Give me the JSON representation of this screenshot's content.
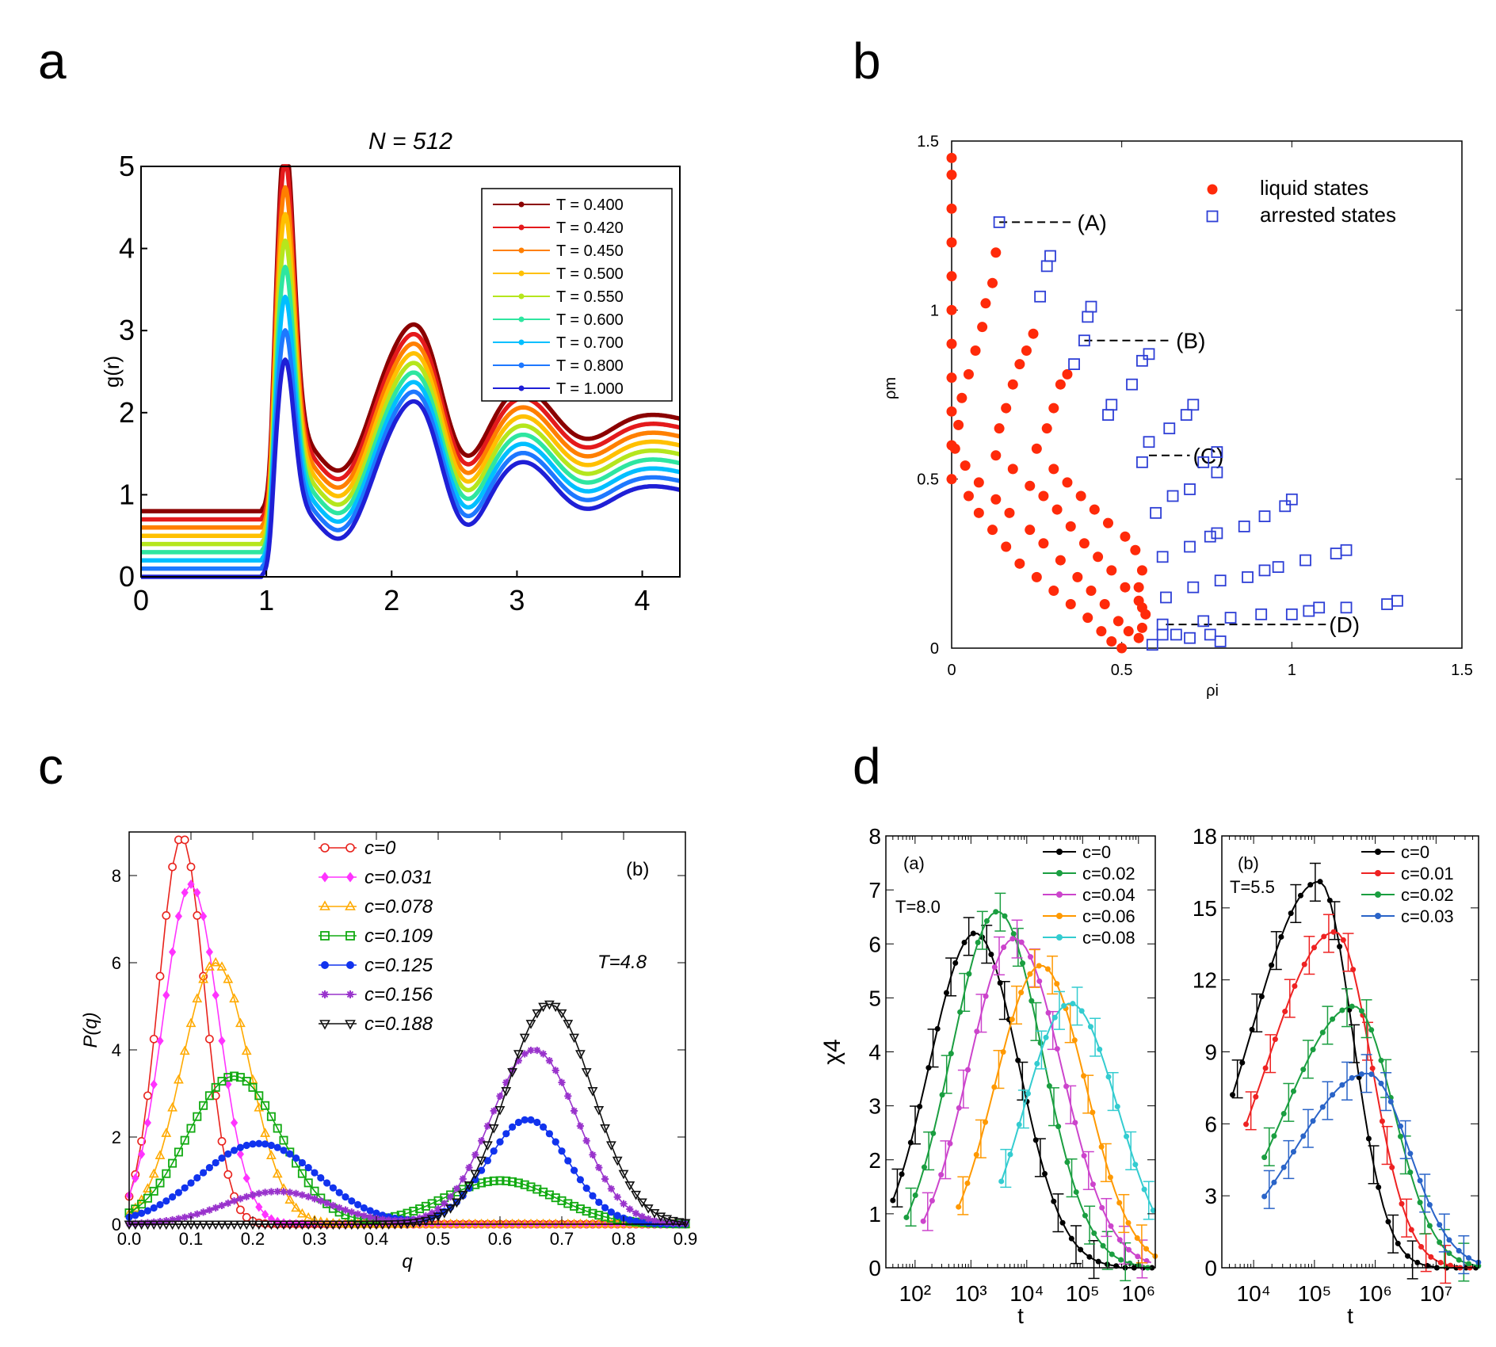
{
  "panel_labels": {
    "a": "a",
    "b": "b",
    "c": "c",
    "d": "d"
  },
  "chart_data": [
    {
      "id": "a",
      "type": "line",
      "title": "N = 512",
      "xlabel": "",
      "ylabel": "g(r)",
      "xlim": [
        0,
        4.3
      ],
      "ylim": [
        0,
        5
      ],
      "xticks": [
        0,
        1,
        2,
        3,
        4
      ],
      "yticks": [
        0,
        1,
        2,
        3,
        4,
        5
      ],
      "legend_position": "top-right",
      "series": [
        {
          "name": "T = 0.400",
          "color": "#8b0000",
          "offset": 0.8,
          "peak": 4.57
        },
        {
          "name": "T = 0.420",
          "color": "#e41a1c",
          "offset": 0.7,
          "peak": 4.45
        },
        {
          "name": "T = 0.450",
          "color": "#ff7f00",
          "offset": 0.6,
          "peak": 4.25
        },
        {
          "name": "T = 0.500",
          "color": "#ffc000",
          "offset": 0.5,
          "peak": 4.05
        },
        {
          "name": "T = 0.550",
          "color": "#b5e61d",
          "offset": 0.4,
          "peak": 3.85
        },
        {
          "name": "T = 0.600",
          "color": "#2ee6a0",
          "offset": 0.3,
          "peak": 3.65
        },
        {
          "name": "T = 0.700",
          "color": "#00bfff",
          "offset": 0.2,
          "peak": 3.4
        },
        {
          "name": "T = 0.800",
          "color": "#1e78ff",
          "offset": 0.1,
          "peak": 3.1
        },
        {
          "name": "T = 1.000",
          "color": "#1f1fd6",
          "offset": 0.0,
          "peak": 2.85
        }
      ]
    },
    {
      "id": "b",
      "type": "scatter",
      "xlabel": "ρi",
      "ylabel": "ρm",
      "xlim": [
        0,
        1.5
      ],
      "ylim": [
        0,
        1.5
      ],
      "xticks": [
        "0",
        "0.5",
        "1",
        "1.5"
      ],
      "yticks": [
        "0",
        "0.5",
        "1",
        "1.5"
      ],
      "legend_position": "top-right",
      "series": [
        {
          "name": "liquid states",
          "color": "#ff2a0a",
          "marker": "filled-circle",
          "points": [
            [
              0,
              1.45
            ],
            [
              0,
              1.4
            ],
            [
              0,
              1.3
            ],
            [
              0,
              1.2
            ],
            [
              0,
              1.1
            ],
            [
              0,
              1.0
            ],
            [
              0,
              0.9
            ],
            [
              0,
              0.8
            ],
            [
              0,
              0.7
            ],
            [
              0,
              0.6
            ],
            [
              0,
              0.5
            ],
            [
              0.05,
              0.45
            ],
            [
              0.08,
              0.4
            ],
            [
              0.12,
              0.35
            ],
            [
              0.16,
              0.3
            ],
            [
              0.2,
              0.25
            ],
            [
              0.25,
              0.21
            ],
            [
              0.3,
              0.17
            ],
            [
              0.35,
              0.13
            ],
            [
              0.4,
              0.09
            ],
            [
              0.44,
              0.05
            ],
            [
              0.47,
              0.02
            ],
            [
              0.5,
              0.0
            ],
            [
              0.13,
              1.17
            ],
            [
              0.12,
              1.08
            ],
            [
              0.1,
              1.02
            ],
            [
              0.09,
              0.95
            ],
            [
              0.07,
              0.88
            ],
            [
              0.05,
              0.81
            ],
            [
              0.03,
              0.74
            ],
            [
              0.02,
              0.66
            ],
            [
              0.01,
              0.59
            ],
            [
              0.04,
              0.54
            ],
            [
              0.08,
              0.49
            ],
            [
              0.13,
              0.44
            ],
            [
              0.17,
              0.4
            ],
            [
              0.23,
              0.35
            ],
            [
              0.27,
              0.31
            ],
            [
              0.32,
              0.26
            ],
            [
              0.37,
              0.21
            ],
            [
              0.41,
              0.17
            ],
            [
              0.45,
              0.13
            ],
            [
              0.49,
              0.08
            ],
            [
              0.52,
              0.05
            ],
            [
              0.55,
              0.03
            ],
            [
              0.24,
              0.93
            ],
            [
              0.22,
              0.88
            ],
            [
              0.2,
              0.84
            ],
            [
              0.18,
              0.78
            ],
            [
              0.16,
              0.71
            ],
            [
              0.14,
              0.65
            ],
            [
              0.13,
              0.57
            ],
            [
              0.18,
              0.53
            ],
            [
              0.23,
              0.48
            ],
            [
              0.27,
              0.45
            ],
            [
              0.31,
              0.41
            ],
            [
              0.35,
              0.36
            ],
            [
              0.39,
              0.31
            ],
            [
              0.43,
              0.27
            ],
            [
              0.47,
              0.23
            ],
            [
              0.51,
              0.18
            ],
            [
              0.55,
              0.14
            ],
            [
              0.57,
              0.1
            ],
            [
              0.56,
              0.06
            ],
            [
              0.34,
              0.81
            ],
            [
              0.32,
              0.78
            ],
            [
              0.3,
              0.71
            ],
            [
              0.28,
              0.65
            ],
            [
              0.25,
              0.59
            ],
            [
              0.3,
              0.53
            ],
            [
              0.34,
              0.49
            ],
            [
              0.38,
              0.45
            ],
            [
              0.42,
              0.41
            ],
            [
              0.46,
              0.37
            ],
            [
              0.51,
              0.33
            ],
            [
              0.54,
              0.29
            ],
            [
              0.56,
              0.23
            ],
            [
              0.55,
              0.18
            ],
            [
              0.56,
              0.12
            ]
          ]
        },
        {
          "name": "arrested states",
          "color": "#2e3fd6",
          "marker": "open-square",
          "points": [
            [
              0.14,
              1.26
            ],
            [
              0.29,
              1.16
            ],
            [
              0.28,
              1.13
            ],
            [
              0.26,
              1.04
            ],
            [
              0.41,
              1.01
            ],
            [
              0.4,
              0.98
            ],
            [
              0.39,
              0.91
            ],
            [
              0.36,
              0.84
            ],
            [
              0.58,
              0.87
            ],
            [
              0.56,
              0.85
            ],
            [
              0.53,
              0.78
            ],
            [
              0.47,
              0.72
            ],
            [
              0.46,
              0.69
            ],
            [
              0.71,
              0.72
            ],
            [
              0.69,
              0.69
            ],
            [
              0.64,
              0.65
            ],
            [
              0.58,
              0.61
            ],
            [
              0.56,
              0.55
            ],
            [
              0.78,
              0.58
            ],
            [
              0.74,
              0.55
            ],
            [
              0.78,
              0.52
            ],
            [
              0.7,
              0.47
            ],
            [
              0.65,
              0.45
            ],
            [
              0.6,
              0.4
            ],
            [
              1.0,
              0.44
            ],
            [
              0.98,
              0.42
            ],
            [
              0.92,
              0.39
            ],
            [
              0.86,
              0.36
            ],
            [
              0.78,
              0.34
            ],
            [
              0.76,
              0.33
            ],
            [
              0.7,
              0.3
            ],
            [
              0.62,
              0.27
            ],
            [
              1.16,
              0.29
            ],
            [
              1.13,
              0.28
            ],
            [
              1.04,
              0.26
            ],
            [
              0.96,
              0.24
            ],
            [
              0.92,
              0.23
            ],
            [
              0.87,
              0.21
            ],
            [
              0.79,
              0.2
            ],
            [
              0.71,
              0.18
            ],
            [
              0.63,
              0.15
            ],
            [
              1.31,
              0.14
            ],
            [
              1.28,
              0.13
            ],
            [
              1.16,
              0.12
            ],
            [
              1.08,
              0.12
            ],
            [
              1.05,
              0.11
            ],
            [
              1.0,
              0.1
            ],
            [
              0.91,
              0.1
            ],
            [
              0.82,
              0.09
            ],
            [
              0.74,
              0.08
            ],
            [
              0.62,
              0.07
            ],
            [
              0.79,
              0.02
            ],
            [
              0.76,
              0.04
            ],
            [
              0.7,
              0.03
            ],
            [
              0.66,
              0.04
            ],
            [
              0.62,
              0.04
            ],
            [
              0.59,
              0.01
            ]
          ]
        }
      ],
      "annotations": [
        {
          "text": "(A)",
          "from": [
            0.14,
            1.26
          ],
          "to": [
            0.36,
            1.26
          ]
        },
        {
          "text": "(B)",
          "from": [
            0.39,
            0.91
          ],
          "to": [
            0.65,
            0.91
          ]
        },
        {
          "text": "(C)",
          "from": [
            0.58,
            0.57
          ],
          "to": [
            0.7,
            0.57
          ]
        },
        {
          "text": "(D)",
          "from": [
            0.63,
            0.07
          ],
          "to": [
            1.1,
            0.07
          ]
        }
      ]
    },
    {
      "id": "c",
      "type": "line",
      "xlabel": "q",
      "ylabel": "P(q)",
      "xlim": [
        0,
        0.9
      ],
      "ylim": [
        0,
        9
      ],
      "xticks": [
        "0.0",
        "0.1",
        "0.2",
        "0.3",
        "0.4",
        "0.5",
        "0.6",
        "0.7",
        "0.8",
        "0.9"
      ],
      "yticks": [
        "0",
        "2",
        "4",
        "6",
        "8"
      ],
      "annotations": [
        "(b)",
        "T=4.8"
      ],
      "legend_position": "top-center",
      "series": [
        {
          "name": "c=0",
          "color": "#e8221c",
          "marker": "open-circle",
          "peaks": [
            [
              0.085,
              8.9,
              0.037
            ]
          ]
        },
        {
          "name": "c=0.031",
          "color": "#ff33ff",
          "marker": "filled-diamond",
          "peaks": [
            [
              0.1,
              7.8,
              0.045
            ]
          ]
        },
        {
          "name": "c=0.078",
          "color": "#ffaa00",
          "marker": "open-triangle",
          "peaks": [
            [
              0.14,
              6.0,
              0.055
            ]
          ]
        },
        {
          "name": "c=0.109",
          "color": "#11aa11",
          "marker": "open-square",
          "peaks": [
            [
              0.17,
              3.4,
              0.075
            ],
            [
              0.6,
              1.0,
              0.09
            ]
          ]
        },
        {
          "name": "c=0.125",
          "color": "#1133ee",
          "marker": "filled-circle",
          "peaks": [
            [
              0.21,
              1.85,
              0.095
            ],
            [
              0.645,
              2.4,
              0.065
            ]
          ]
        },
        {
          "name": "c=0.156",
          "color": "#9933cc",
          "marker": "star",
          "peaks": [
            [
              0.24,
              0.75,
              0.085
            ],
            [
              0.655,
              4.0,
              0.07
            ]
          ]
        },
        {
          "name": "c=0.188",
          "color": "#111111",
          "marker": "open-down-triangle",
          "peaks": [
            [
              0.68,
              5.05,
              0.07
            ]
          ]
        }
      ]
    },
    {
      "id": "d-left",
      "type": "line",
      "xlabel": "t",
      "ylabel": "χ4",
      "xscale": "log",
      "xlim": [
        30,
        2000000
      ],
      "ylim": [
        0,
        8
      ],
      "xticks": [
        "10²",
        "10³",
        "10⁴",
        "10⁵",
        "10⁶"
      ],
      "yticks": [
        "0",
        "1",
        "2",
        "3",
        "4",
        "5",
        "6",
        "7",
        "8"
      ],
      "annotations": [
        "(a)",
        "T=8.0"
      ],
      "legend_position": "top-right",
      "series": [
        {
          "name": "c=0",
          "color": "#000000",
          "start": 40,
          "peak_t": 1200,
          "peak": 6.2,
          "width": 0.78,
          "rise": 0.55
        },
        {
          "name": "c=0.02",
          "color": "#1a9e40",
          "start": 70,
          "peak_t": 3000,
          "peak": 6.6,
          "width": 0.8,
          "rise": 0.55
        },
        {
          "name": "c=0.04",
          "color": "#cc44cc",
          "start": 140,
          "peak_t": 6000,
          "peak": 6.1,
          "width": 0.85,
          "rise": 0.55
        },
        {
          "name": "c=0.06",
          "color": "#ff9900",
          "start": 600,
          "peak_t": 18000,
          "peak": 5.6,
          "width": 0.8,
          "rise": 0.55
        },
        {
          "name": "c=0.08",
          "color": "#33ccd0",
          "start": 3500,
          "peak_t": 60000,
          "peak": 4.9,
          "width": 0.85,
          "rise": 0.55
        }
      ]
    },
    {
      "id": "d-right",
      "type": "line",
      "xlabel": "t",
      "ylabel": "",
      "xscale": "log",
      "xlim": [
        3000,
        50000000
      ],
      "ylim": [
        0,
        18
      ],
      "xticks": [
        "10⁴",
        "10⁵",
        "10⁶",
        "10⁷"
      ],
      "yticks": [
        "0",
        "3",
        "6",
        "9",
        "12",
        "15",
        "18"
      ],
      "annotations": [
        "(b)",
        "T=5.5"
      ],
      "legend_position": "top-right",
      "series": [
        {
          "name": "c=0",
          "color": "#000000",
          "start": 4500,
          "peak_t": 120000,
          "peak": 16.1,
          "width": 0.55,
          "rise": 0.75
        },
        {
          "name": "c=0.01",
          "color": "#ee2222",
          "start": 7500,
          "peak_t": 220000,
          "peak": 14.0,
          "width": 0.6,
          "rise": 0.75
        },
        {
          "name": "c=0.02",
          "color": "#1a9e40",
          "start": 15000,
          "peak_t": 450000,
          "peak": 10.9,
          "width": 0.65,
          "rise": 0.75
        },
        {
          "name": "c=0.03",
          "color": "#2a64c8",
          "start": 15000,
          "peak_t": 750000,
          "peak": 8.1,
          "width": 0.68,
          "rise": 0.8
        }
      ]
    }
  ]
}
